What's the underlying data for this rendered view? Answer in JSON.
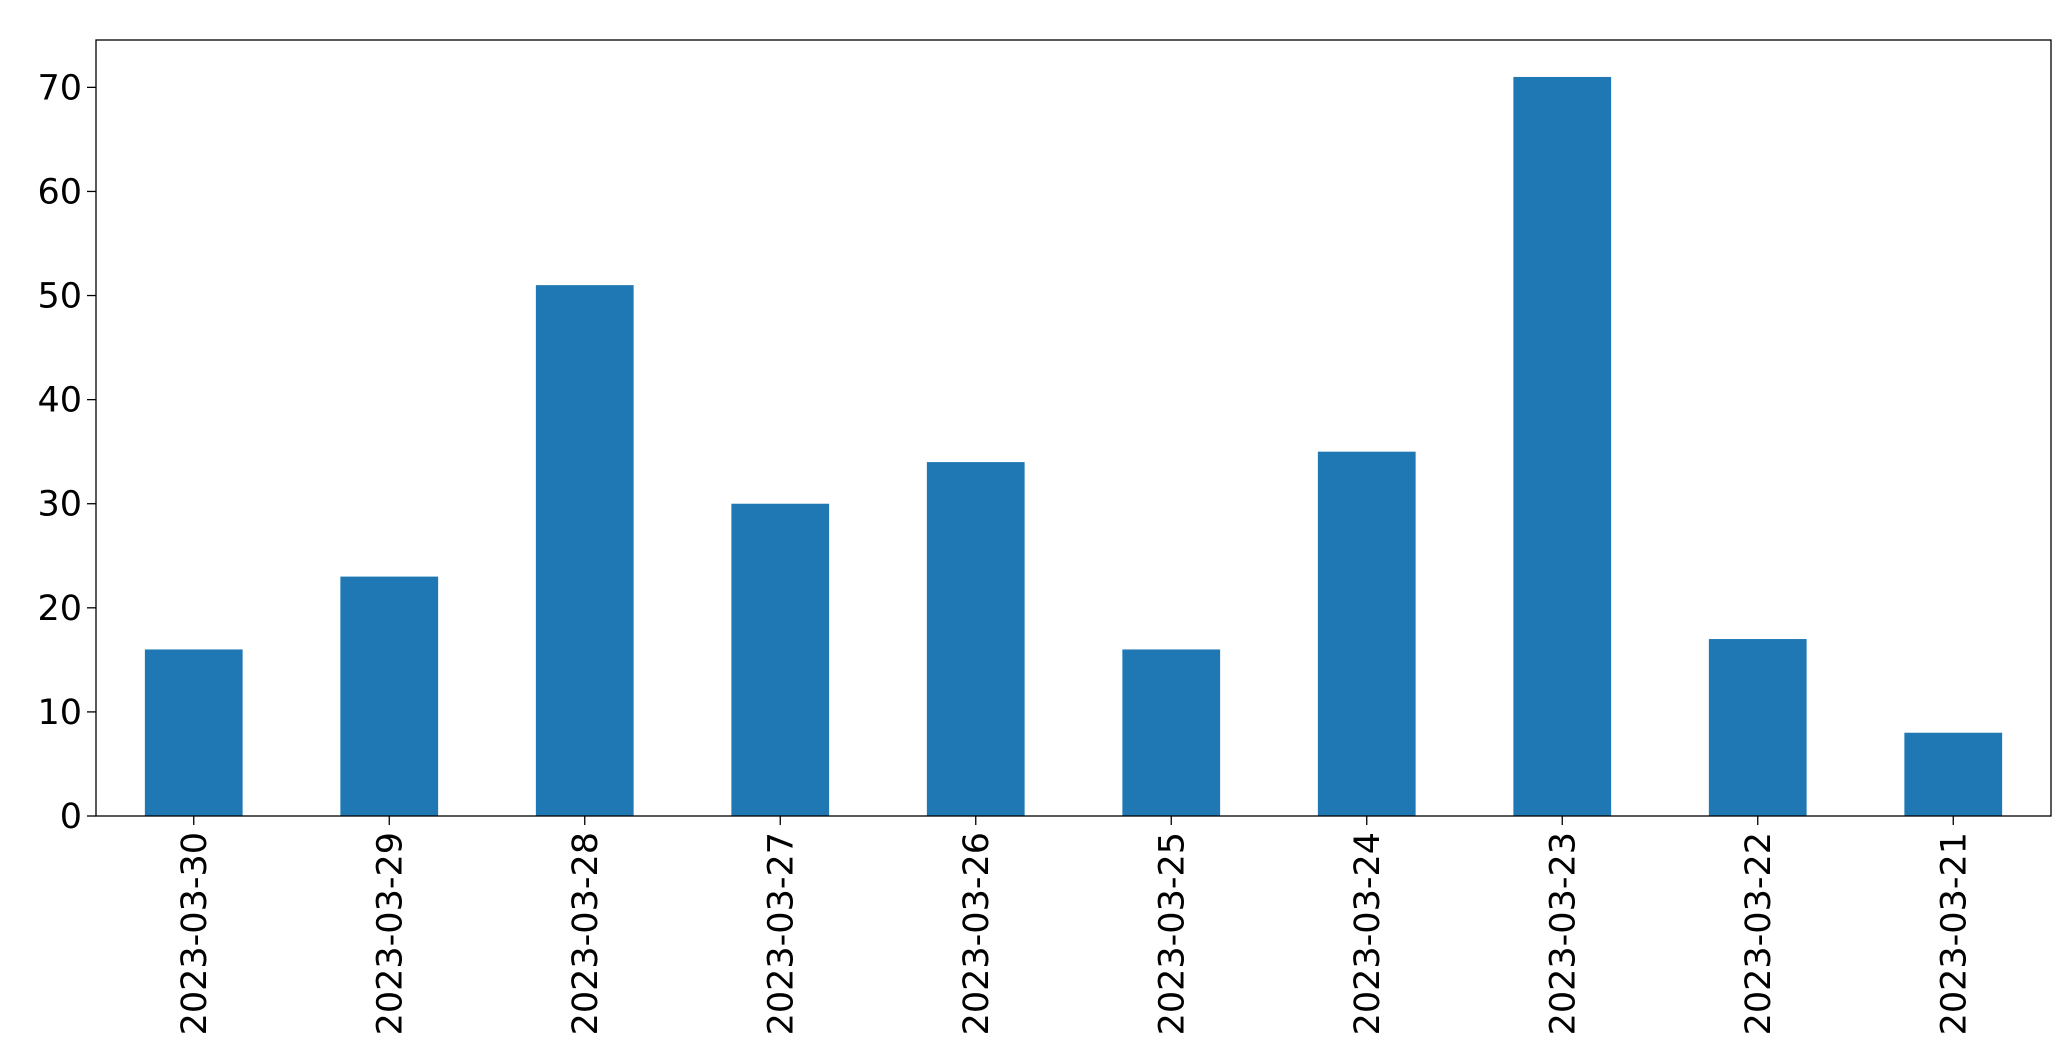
{
  "chart_data": {
    "type": "bar",
    "categories": [
      "2023-03-30",
      "2023-03-29",
      "2023-03-28",
      "2023-03-27",
      "2023-03-26",
      "2023-03-25",
      "2023-03-24",
      "2023-03-23",
      "2023-03-22",
      "2023-03-21"
    ],
    "values": [
      16,
      23,
      51,
      30,
      34,
      16,
      35,
      71,
      17,
      8
    ],
    "color": "#1f77b4",
    "ylim": [
      0,
      74.55
    ],
    "yticks": [
      0,
      10,
      20,
      30,
      40,
      50,
      60,
      70
    ],
    "grid": false
  }
}
